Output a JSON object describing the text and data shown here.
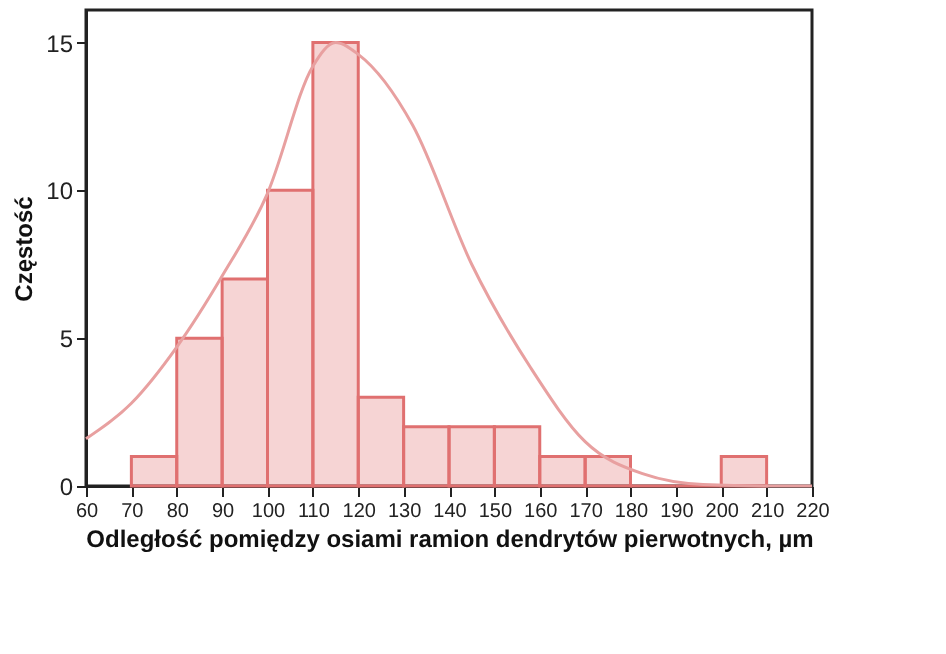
{
  "chart_data": {
    "type": "histogram",
    "xlabel": "Odległość pomiędzy osiami ramion dendrytów pierwotnych, µm",
    "ylabel": "Częstość",
    "bins": [
      70,
      80,
      90,
      100,
      110,
      120,
      130,
      140,
      150,
      160,
      170,
      180,
      190,
      200,
      210
    ],
    "values": [
      1,
      5,
      7,
      10,
      15,
      3,
      2,
      2,
      2,
      1,
      1,
      0,
      0,
      1
    ],
    "color": "#e07070",
    "series": [
      {
        "type": "line",
        "color": "#e8a0a0",
        "x": [
          60,
          70,
          80,
          90,
          100,
          110,
          115,
          120,
          132,
          145,
          158,
          170,
          183,
          196,
          210,
          220
        ],
        "values": [
          1.6,
          2.8,
          4.7,
          7.1,
          9.9,
          14.2,
          15,
          14.6,
          12.2,
          7.5,
          4.0,
          1.5,
          0.4,
          0.05,
          0,
          0
        ]
      }
    ],
    "xlim": [
      60,
      220
    ],
    "xticks": [
      60,
      70,
      80,
      90,
      100,
      110,
      120,
      130,
      140,
      150,
      160,
      170,
      180,
      190,
      200,
      210,
      220
    ],
    "ylim": [
      0,
      16.1
    ],
    "yticks": [
      0,
      5,
      10,
      15
    ],
    "grid": false
  }
}
